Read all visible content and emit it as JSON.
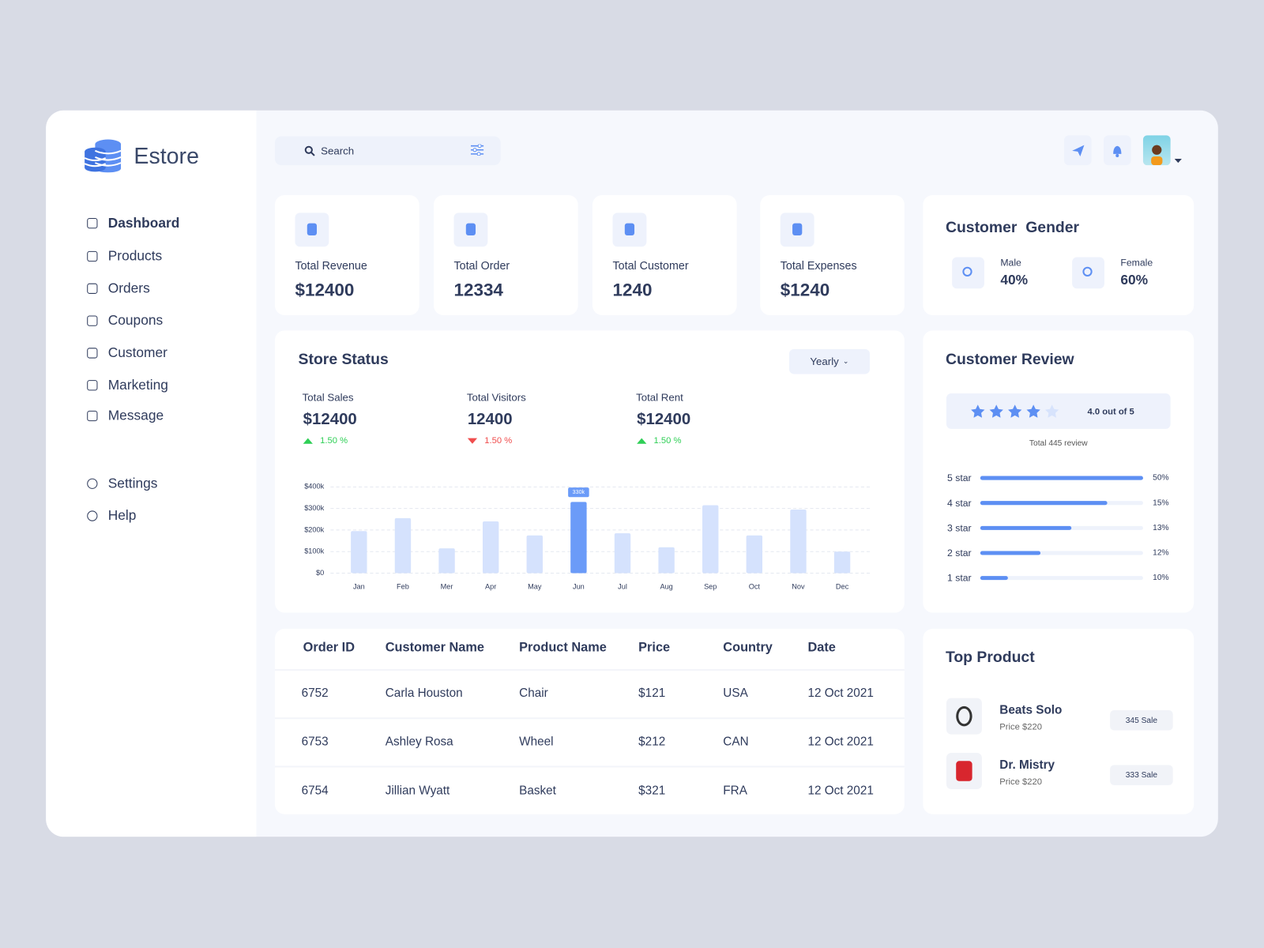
{
  "brand": "Estore",
  "nav": [
    "Dashboard",
    "Products",
    "Orders",
    "Coupons",
    "Customer",
    "Marketing",
    "Message"
  ],
  "nav_secondary": [
    "Settings",
    "Help"
  ],
  "search_placeholder": "Search",
  "stats": [
    {
      "label": "Total Revenue",
      "value": "$12400"
    },
    {
      "label": "Total Order",
      "value": "12334"
    },
    {
      "label": "Total Customer",
      "value": "1240"
    },
    {
      "label": "Total Expenses",
      "value": "$1240"
    }
  ],
  "gender": {
    "title": "Customer  Gender",
    "items": [
      {
        "label": "Male",
        "value": "40%"
      },
      {
        "label": "Female",
        "value": "60%"
      }
    ]
  },
  "store_status": {
    "title": "Store Status",
    "period": "Yearly",
    "metrics": [
      {
        "label": "Total Sales",
        "value": "$12400",
        "change": "1.50 %",
        "trend": "up"
      },
      {
        "label": "Total Visitors",
        "value": "12400",
        "change": "1.50 %",
        "trend": "down"
      },
      {
        "label": "Total Rent",
        "value": "$12400",
        "change": "1.50 %",
        "trend": "up"
      }
    ],
    "chart": {
      "type": "bar",
      "categories": [
        "Jan",
        "Feb",
        "Mer",
        "Apr",
        "May",
        "Jun",
        "Jul",
        "Aug",
        "Sep",
        "Oct",
        "Nov",
        "Dec"
      ],
      "values": [
        195000,
        255000,
        115000,
        240000,
        175000,
        330000,
        185000,
        120000,
        315000,
        175000,
        295000,
        100000
      ],
      "value_labels": [
        null,
        null,
        null,
        null,
        null,
        "330k",
        null,
        null,
        null,
        null,
        null,
        null
      ],
      "color": "#d5e2fd",
      "highlight_color": "#6b9bf8",
      "ylim": [
        0,
        400000
      ],
      "yticks": [
        {
          "value": 0,
          "label": "$0"
        },
        {
          "value": 100000,
          "label": "$100k"
        },
        {
          "value": 200000,
          "label": "$200k"
        },
        {
          "value": 300000,
          "label": "$300k"
        },
        {
          "value": 400000,
          "label": "$400k"
        }
      ],
      "grid": true
    }
  },
  "review": {
    "title": "Customer Review",
    "rating": "4.0 out of 5",
    "total": "Total 445 review",
    "rows": [
      {
        "label": "5 star",
        "value": 50,
        "value_label": "50%",
        "fill": 100
      },
      {
        "label": "4 star",
        "value": 15,
        "value_label": "15%",
        "fill": 78
      },
      {
        "label": "3 star",
        "value": 13,
        "value_label": "13%",
        "fill": 56
      },
      {
        "label": "2 star",
        "value": 12,
        "value_label": "12%",
        "fill": 37
      },
      {
        "label": "1 star",
        "value": 10,
        "value_label": "10%",
        "fill": 17
      }
    ]
  },
  "orders": {
    "columns": [
      "Order ID",
      "Customer Name",
      "Product Name",
      "Price",
      "Country",
      "Date"
    ],
    "rows": [
      [
        "6752",
        "Carla Houston",
        "Chair",
        "$121",
        "USA",
        "12 Oct 2021"
      ],
      [
        "6753",
        "Ashley Rosa",
        "Wheel",
        "$212",
        "CAN",
        "12 Oct 2021"
      ],
      [
        "6754",
        "Jillian Wyatt",
        "Basket",
        "$321",
        "FRA",
        "12 Oct 2021"
      ]
    ]
  },
  "top_product": {
    "title": "Top Product",
    "items": [
      {
        "name": "Beats Solo",
        "price": "Price $220",
        "sales": "345 Sale"
      },
      {
        "name": "Dr. Mistry",
        "price": "Price $220",
        "sales": "333 Sale"
      }
    ]
  }
}
